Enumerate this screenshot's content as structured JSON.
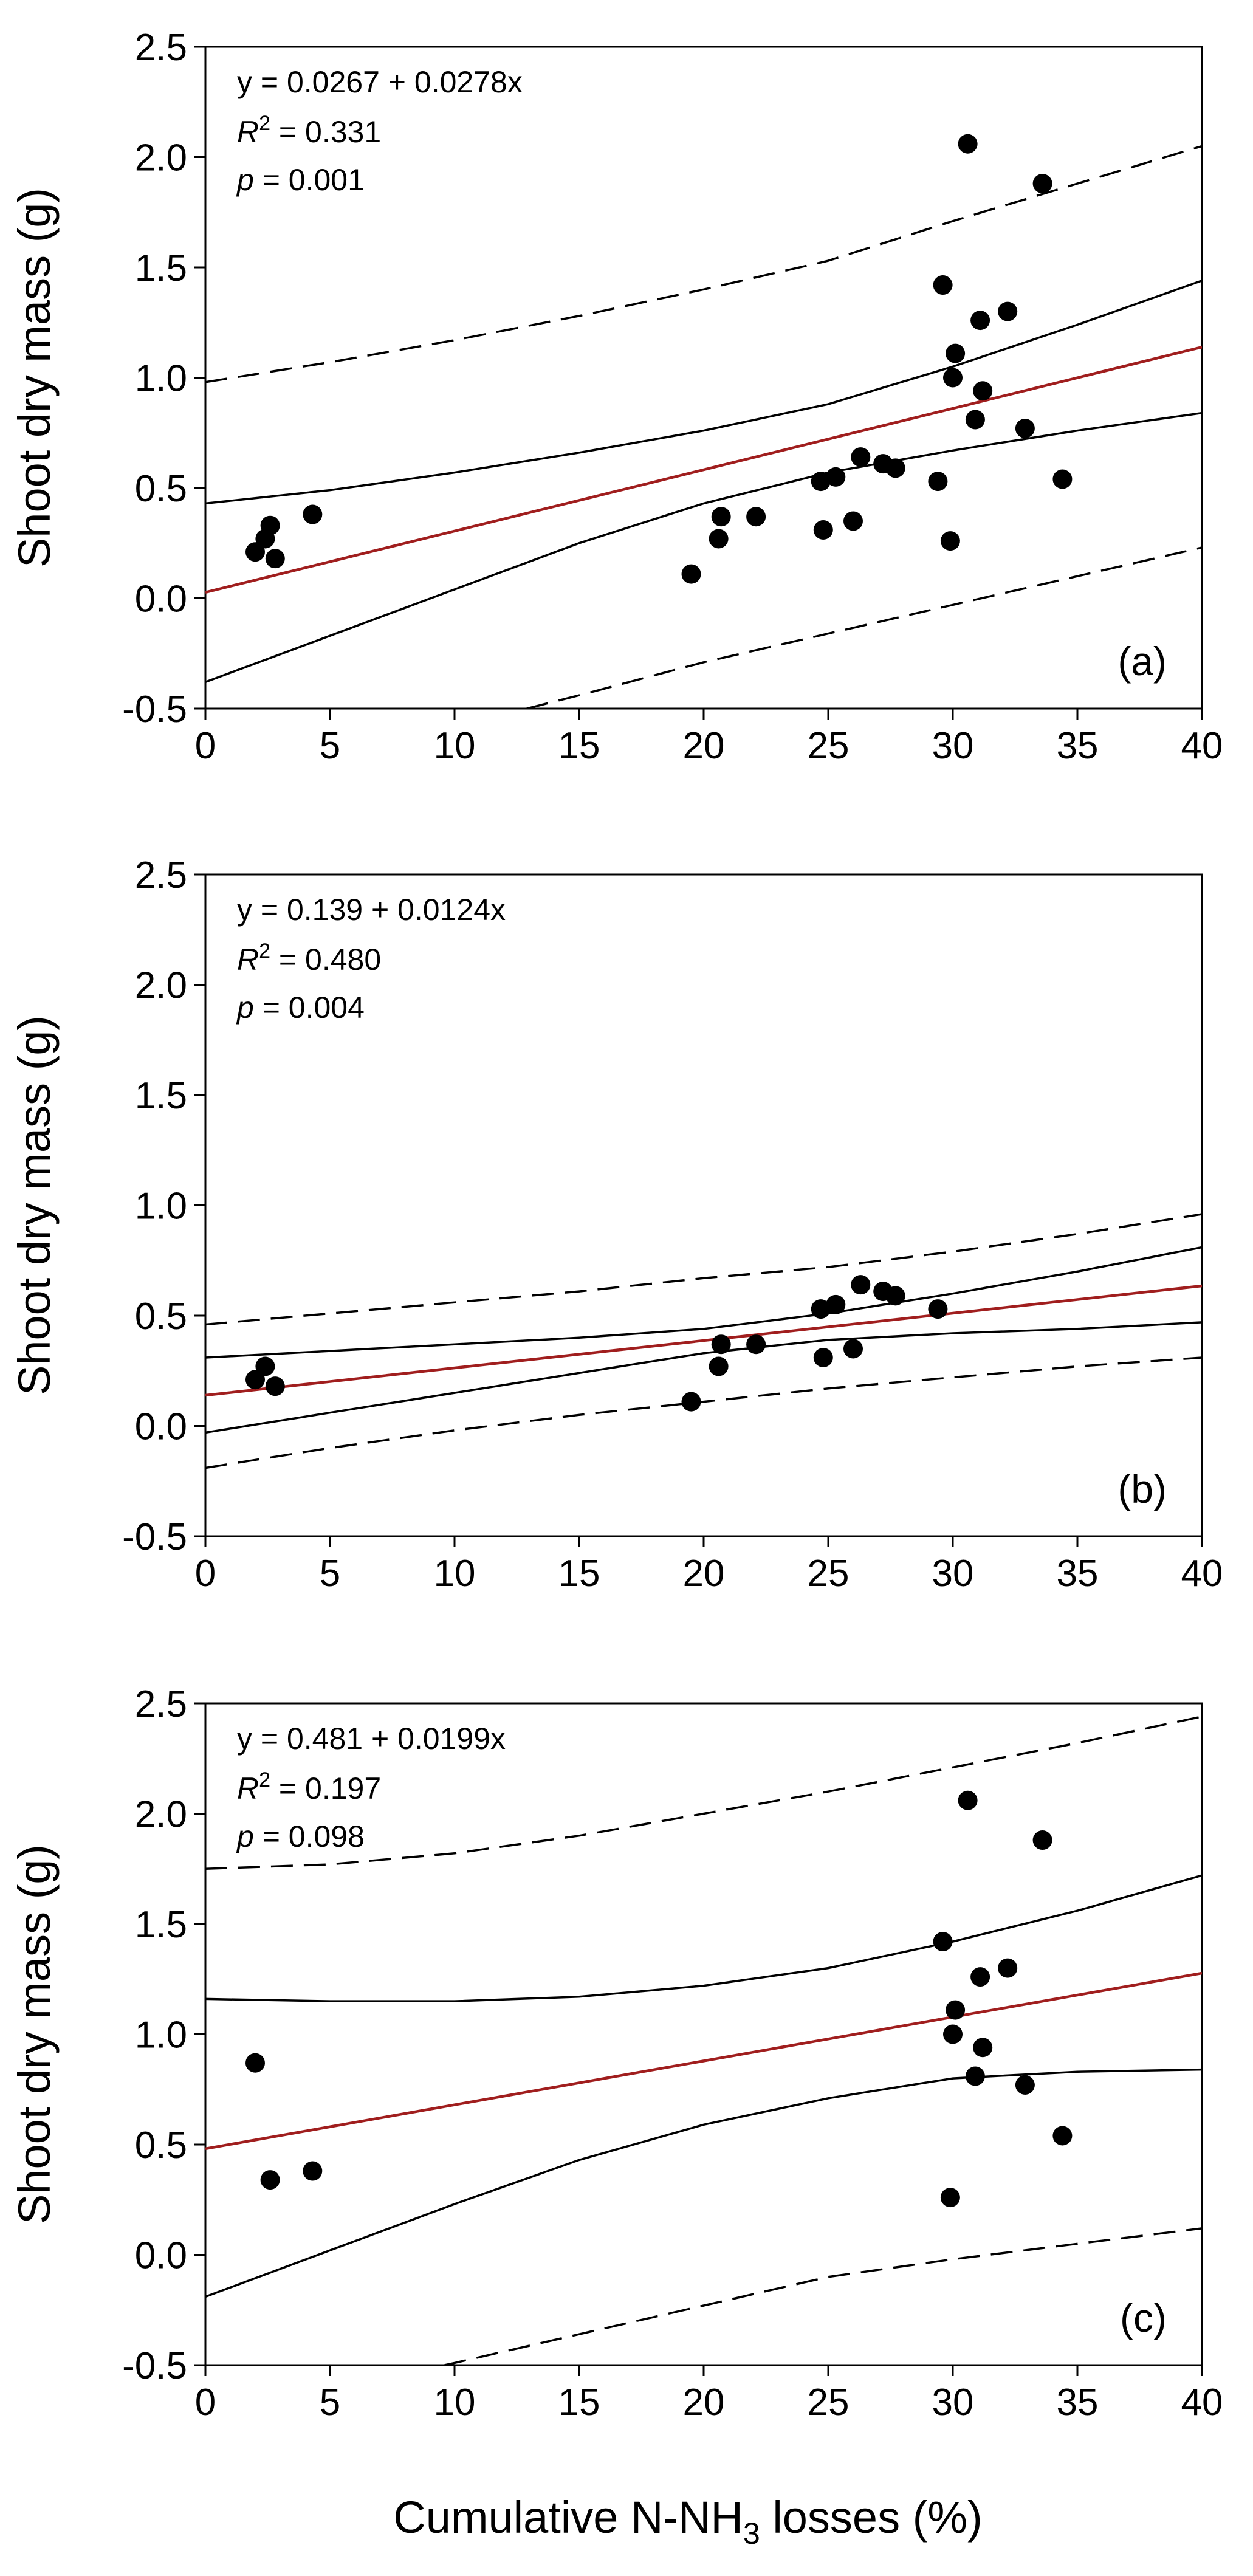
{
  "y_axis_title": "Shoot dry mass (g)",
  "x_axis_title": {
    "prefix": "Cumulative N-NH",
    "subscript": "3",
    "suffix": " losses (%)"
  },
  "colors": {
    "fit": "#a01e1e",
    "points": "#000000",
    "bands": "#000000",
    "background": "#ffffff"
  },
  "chart_data": [
    {
      "type": "scatter",
      "panel_label": "(a)",
      "equation": "y = 0.0267 + 0.0278x",
      "r2_symbol": "R",
      "r2_sup": "2",
      "r2_value": " = 0.331",
      "p_symbol": "p",
      "p_value": " = 0.001",
      "xlabel": "Cumulative N-NH3 losses (%)",
      "ylabel": "Shoot dry mass (g)",
      "xlim": [
        0,
        40
      ],
      "ylim": [
        -0.5,
        2.5
      ],
      "x_ticks": [
        "0",
        "5",
        "10",
        "15",
        "20",
        "25",
        "30",
        "35",
        "40"
      ],
      "y_ticks": [
        "-0.5",
        "0.0",
        "0.5",
        "1.0",
        "1.5",
        "2.0",
        "2.5"
      ],
      "fit": {
        "intercept": 0.0267,
        "slope": 0.0278
      },
      "confidence_upper": [
        [
          0,
          0.43
        ],
        [
          5,
          0.49
        ],
        [
          10,
          0.57
        ],
        [
          15,
          0.66
        ],
        [
          20,
          0.76
        ],
        [
          25,
          0.88
        ],
        [
          30,
          1.05
        ],
        [
          35,
          1.24
        ],
        [
          40,
          1.44
        ]
      ],
      "confidence_lower": [
        [
          0,
          -0.38
        ],
        [
          5,
          -0.17
        ],
        [
          10,
          0.04
        ],
        [
          15,
          0.25
        ],
        [
          20,
          0.43
        ],
        [
          25,
          0.57
        ],
        [
          30,
          0.67
        ],
        [
          35,
          0.76
        ],
        [
          40,
          0.84
        ]
      ],
      "prediction_upper": [
        [
          0,
          0.98
        ],
        [
          5,
          1.07
        ],
        [
          10,
          1.17
        ],
        [
          15,
          1.28
        ],
        [
          20,
          1.4
        ],
        [
          25,
          1.53
        ],
        [
          30,
          1.71
        ],
        [
          35,
          1.88
        ],
        [
          40,
          2.05
        ]
      ],
      "prediction_lower": [
        [
          12.9,
          -0.5
        ],
        [
          15,
          -0.44
        ],
        [
          20,
          -0.29
        ],
        [
          25,
          -0.16
        ],
        [
          30,
          -0.03
        ],
        [
          35,
          0.1
        ],
        [
          40,
          0.23
        ]
      ],
      "points": [
        {
          "x": 2.0,
          "y": 0.21
        },
        {
          "x": 2.4,
          "y": 0.27
        },
        {
          "x": 2.6,
          "y": 0.33
        },
        {
          "x": 2.8,
          "y": 0.18
        },
        {
          "x": 4.3,
          "y": 0.38
        },
        {
          "x": 19.5,
          "y": 0.11
        },
        {
          "x": 20.6,
          "y": 0.27
        },
        {
          "x": 20.7,
          "y": 0.37
        },
        {
          "x": 22.1,
          "y": 0.37
        },
        {
          "x": 24.7,
          "y": 0.53
        },
        {
          "x": 24.8,
          "y": 0.31
        },
        {
          "x": 25.3,
          "y": 0.55
        },
        {
          "x": 26.0,
          "y": 0.35
        },
        {
          "x": 26.3,
          "y": 0.64
        },
        {
          "x": 27.2,
          "y": 0.61
        },
        {
          "x": 27.7,
          "y": 0.59
        },
        {
          "x": 29.4,
          "y": 0.53
        },
        {
          "x": 29.6,
          "y": 1.42
        },
        {
          "x": 29.9,
          "y": 0.26
        },
        {
          "x": 30.0,
          "y": 1.0
        },
        {
          "x": 30.1,
          "y": 1.11
        },
        {
          "x": 30.6,
          "y": 2.06
        },
        {
          "x": 30.9,
          "y": 0.81
        },
        {
          "x": 31.1,
          "y": 1.26
        },
        {
          "x": 31.2,
          "y": 0.94
        },
        {
          "x": 32.2,
          "y": 1.3
        },
        {
          "x": 32.9,
          "y": 0.77
        },
        {
          "x": 33.6,
          "y": 1.88
        },
        {
          "x": 34.4,
          "y": 0.54
        }
      ]
    },
    {
      "type": "scatter",
      "panel_label": "(b)",
      "equation": "y = 0.139 + 0.0124x",
      "r2_symbol": "R",
      "r2_sup": "2",
      "r2_value": " = 0.480",
      "p_symbol": "p",
      "p_value": " = 0.004",
      "xlabel": "Cumulative N-NH3 losses (%)",
      "ylabel": "Shoot dry mass (g)",
      "xlim": [
        0,
        40
      ],
      "ylim": [
        -0.5,
        2.5
      ],
      "x_ticks": [
        "0",
        "5",
        "10",
        "15",
        "20",
        "25",
        "30",
        "35",
        "40"
      ],
      "y_ticks": [
        "-0.5",
        "0.0",
        "0.5",
        "1.0",
        "1.5",
        "2.0",
        "2.5"
      ],
      "fit": {
        "intercept": 0.139,
        "slope": 0.0124
      },
      "confidence_upper": [
        [
          0,
          0.31
        ],
        [
          5,
          0.34
        ],
        [
          10,
          0.37
        ],
        [
          15,
          0.4
        ],
        [
          20,
          0.44
        ],
        [
          25,
          0.51
        ],
        [
          30,
          0.6
        ],
        [
          35,
          0.7
        ],
        [
          40,
          0.81
        ]
      ],
      "confidence_lower": [
        [
          0,
          -0.03
        ],
        [
          5,
          0.06
        ],
        [
          10,
          0.15
        ],
        [
          15,
          0.24
        ],
        [
          20,
          0.33
        ],
        [
          25,
          0.39
        ],
        [
          30,
          0.42
        ],
        [
          35,
          0.44
        ],
        [
          40,
          0.47
        ]
      ],
      "prediction_upper": [
        [
          0,
          0.46
        ],
        [
          5,
          0.51
        ],
        [
          10,
          0.56
        ],
        [
          15,
          0.61
        ],
        [
          20,
          0.67
        ],
        [
          25,
          0.72
        ],
        [
          30,
          0.79
        ],
        [
          35,
          0.87
        ],
        [
          40,
          0.96
        ]
      ],
      "prediction_lower": [
        [
          0,
          -0.19
        ],
        [
          5,
          -0.1
        ],
        [
          10,
          -0.02
        ],
        [
          15,
          0.05
        ],
        [
          20,
          0.11
        ],
        [
          25,
          0.17
        ],
        [
          30,
          0.22
        ],
        [
          35,
          0.27
        ],
        [
          40,
          0.31
        ]
      ],
      "points": [
        {
          "x": 2.0,
          "y": 0.21
        },
        {
          "x": 2.4,
          "y": 0.27
        },
        {
          "x": 2.8,
          "y": 0.18
        },
        {
          "x": 19.5,
          "y": 0.11
        },
        {
          "x": 20.6,
          "y": 0.27
        },
        {
          "x": 20.7,
          "y": 0.37
        },
        {
          "x": 22.1,
          "y": 0.37
        },
        {
          "x": 24.7,
          "y": 0.53
        },
        {
          "x": 24.8,
          "y": 0.31
        },
        {
          "x": 25.3,
          "y": 0.55
        },
        {
          "x": 26.0,
          "y": 0.35
        },
        {
          "x": 26.3,
          "y": 0.64
        },
        {
          "x": 27.2,
          "y": 0.61
        },
        {
          "x": 27.7,
          "y": 0.59
        },
        {
          "x": 29.4,
          "y": 0.53
        }
      ]
    },
    {
      "type": "scatter",
      "panel_label": "(c)",
      "equation": "y = 0.481 + 0.0199x",
      "r2_symbol": "R",
      "r2_sup": "2",
      "r2_value": " = 0.197",
      "p_symbol": "p",
      "p_value": " = 0.098",
      "xlabel": "Cumulative N-NH3 losses (%)",
      "ylabel": "Shoot dry mass (g)",
      "xlim": [
        0,
        40
      ],
      "ylim": [
        -0.5,
        2.5
      ],
      "x_ticks": [
        "0",
        "5",
        "10",
        "15",
        "20",
        "25",
        "30",
        "35",
        "40"
      ],
      "y_ticks": [
        "-0.5",
        "0.0",
        "0.5",
        "1.0",
        "1.5",
        "2.0",
        "2.5"
      ],
      "fit": {
        "intercept": 0.481,
        "slope": 0.0199
      },
      "confidence_upper": [
        [
          0,
          1.16
        ],
        [
          5,
          1.15
        ],
        [
          10,
          1.15
        ],
        [
          15,
          1.17
        ],
        [
          20,
          1.22
        ],
        [
          25,
          1.3
        ],
        [
          30,
          1.42
        ],
        [
          35,
          1.56
        ],
        [
          40,
          1.72
        ]
      ],
      "confidence_lower": [
        [
          0,
          -0.19
        ],
        [
          5,
          0.02
        ],
        [
          10,
          0.23
        ],
        [
          15,
          0.43
        ],
        [
          20,
          0.59
        ],
        [
          25,
          0.71
        ],
        [
          30,
          0.8
        ],
        [
          35,
          0.83
        ],
        [
          40,
          0.84
        ]
      ],
      "prediction_upper": [
        [
          0,
          1.75
        ],
        [
          5,
          1.77
        ],
        [
          10,
          1.82
        ],
        [
          15,
          1.9
        ],
        [
          20,
          2.0
        ],
        [
          25,
          2.1
        ],
        [
          30,
          2.21
        ],
        [
          35,
          2.32
        ],
        [
          40,
          2.44
        ]
      ],
      "prediction_lower": [
        [
          9.6,
          -0.5
        ],
        [
          10,
          -0.49
        ],
        [
          15,
          -0.36
        ],
        [
          20,
          -0.23
        ],
        [
          25,
          -0.1
        ],
        [
          30,
          -0.02
        ],
        [
          35,
          0.05
        ],
        [
          40,
          0.12
        ]
      ],
      "points": [
        {
          "x": 2.0,
          "y": 0.87
        },
        {
          "x": 2.6,
          "y": 0.34
        },
        {
          "x": 4.3,
          "y": 0.38
        },
        {
          "x": 29.6,
          "y": 1.42
        },
        {
          "x": 29.9,
          "y": 0.26
        },
        {
          "x": 30.0,
          "y": 1.0
        },
        {
          "x": 30.1,
          "y": 1.11
        },
        {
          "x": 30.6,
          "y": 2.06
        },
        {
          "x": 30.9,
          "y": 0.81
        },
        {
          "x": 31.1,
          "y": 1.26
        },
        {
          "x": 31.2,
          "y": 0.94
        },
        {
          "x": 32.2,
          "y": 1.3
        },
        {
          "x": 32.9,
          "y": 0.77
        },
        {
          "x": 33.6,
          "y": 1.88
        },
        {
          "x": 34.4,
          "y": 0.54
        }
      ]
    }
  ]
}
